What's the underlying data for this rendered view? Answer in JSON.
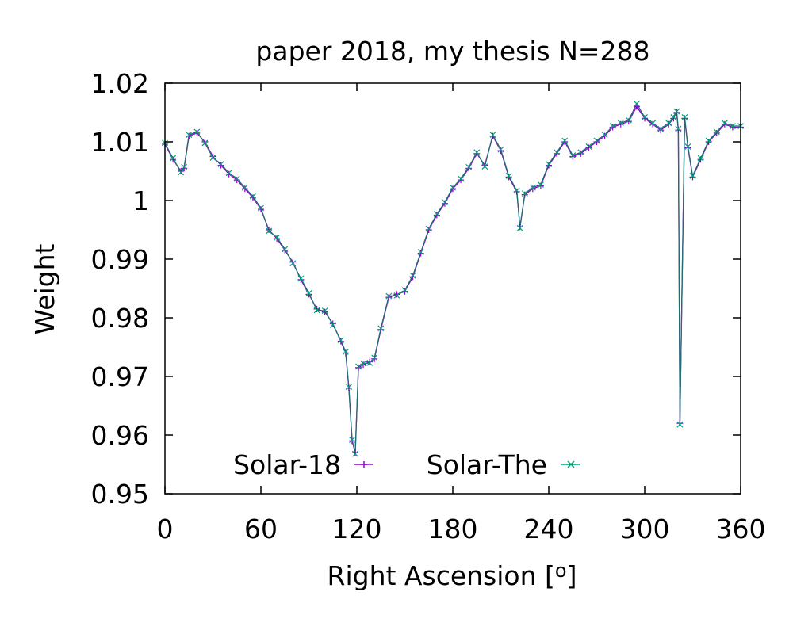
{
  "chart_data": {
    "type": "line",
    "title": "paper 2018, my thesis  N=288",
    "xlabel": "Right Ascension [",
    "xlabel_degree": "o",
    "xlabel_end": "]",
    "ylabel": "Weight",
    "xlim": [
      0,
      360
    ],
    "ylim": [
      0.95,
      1.02
    ],
    "xticks": [
      0,
      60,
      120,
      180,
      240,
      300,
      360
    ],
    "xtick_labels": [
      "0",
      "60",
      "120",
      "180",
      "240",
      "300",
      "360"
    ],
    "yticks": [
      0.95,
      0.96,
      0.97,
      0.98,
      0.99,
      1.0,
      1.01,
      1.02
    ],
    "ytick_labels": [
      "0.95",
      "0.96",
      "0.97",
      "0.98",
      "0.99",
      "1",
      "1.01",
      "1.02"
    ],
    "grid": false,
    "legend_position": "bottom-center",
    "series": [
      {
        "name": "Solar-18",
        "marker": "+",
        "color": "#9400d3",
        "x": [
          0,
          5,
          10,
          12,
          15,
          20,
          25,
          30,
          35,
          40,
          45,
          50,
          55,
          60,
          65,
          70,
          75,
          80,
          85,
          90,
          95,
          100,
          105,
          110,
          113,
          115,
          117,
          119,
          121,
          124,
          128,
          131,
          135,
          140,
          145,
          150,
          155,
          160,
          165,
          170,
          175,
          180,
          185,
          190,
          195,
          200,
          205,
          210,
          215,
          220,
          222,
          225,
          230,
          235,
          240,
          245,
          250,
          255,
          260,
          265,
          270,
          275,
          280,
          285,
          290,
          295,
          300,
          305,
          310,
          315,
          318,
          320,
          321,
          322,
          325,
          327,
          330,
          335,
          340,
          345,
          350,
          355,
          360
        ],
        "y": [
          1.0096,
          1.007,
          1.005,
          1.0055,
          1.011,
          1.0115,
          1.01,
          1.0075,
          1.006,
          1.0045,
          1.0035,
          1.002,
          1.0005,
          0.9985,
          0.995,
          0.9935,
          0.9915,
          0.9895,
          0.9865,
          0.984,
          0.9815,
          0.981,
          0.979,
          0.976,
          0.974,
          0.968,
          0.959,
          0.957,
          0.9715,
          0.972,
          0.9725,
          0.973,
          0.978,
          0.9835,
          0.984,
          0.9845,
          0.987,
          0.991,
          0.995,
          0.9975,
          0.9995,
          1.002,
          1.0035,
          1.0055,
          1.008,
          1.006,
          1.011,
          1.0085,
          1.004,
          1.0015,
          0.9955,
          1.001,
          1.002,
          1.0025,
          1.006,
          1.008,
          1.01,
          1.0075,
          1.008,
          1.009,
          1.01,
          1.011,
          1.0125,
          1.013,
          1.0135,
          1.016,
          1.014,
          1.013,
          1.012,
          1.013,
          1.014,
          1.015,
          1.012,
          0.962,
          1.014,
          1.009,
          1.004,
          1.007,
          1.01,
          1.0115,
          1.013,
          1.0125,
          1.0125
        ]
      },
      {
        "name": "Solar-The",
        "marker": "x",
        "color": "#009e73",
        "x": [
          0,
          5,
          10,
          12,
          15,
          20,
          25,
          30,
          35,
          40,
          45,
          50,
          55,
          60,
          65,
          70,
          75,
          80,
          85,
          90,
          95,
          100,
          105,
          110,
          113,
          115,
          117,
          119,
          121,
          124,
          128,
          131,
          135,
          140,
          145,
          150,
          155,
          160,
          165,
          170,
          175,
          180,
          185,
          190,
          195,
          200,
          205,
          210,
          215,
          220,
          222,
          225,
          230,
          235,
          240,
          245,
          250,
          255,
          260,
          265,
          270,
          275,
          280,
          285,
          290,
          295,
          300,
          305,
          310,
          315,
          318,
          320,
          321,
          322,
          325,
          327,
          330,
          335,
          340,
          345,
          350,
          355,
          360
        ],
        "y": [
          1.0098,
          1.0072,
          1.0048,
          1.0057,
          1.0112,
          1.0117,
          1.0098,
          1.0073,
          1.0062,
          1.0047,
          1.0037,
          1.0022,
          1.0007,
          0.9987,
          0.9948,
          0.9937,
          0.9917,
          0.9893,
          0.9867,
          0.9842,
          0.9813,
          0.9812,
          0.9788,
          0.9762,
          0.9742,
          0.9682,
          0.9592,
          0.9568,
          0.9717,
          0.9722,
          0.9723,
          0.9732,
          0.9782,
          0.9837,
          0.9838,
          0.9847,
          0.9872,
          0.9912,
          0.9952,
          0.9977,
          0.9997,
          1.0022,
          1.0037,
          1.0057,
          1.0082,
          1.0058,
          1.0112,
          1.0087,
          1.0042,
          1.0017,
          0.9953,
          1.0012,
          1.0022,
          1.0027,
          1.0062,
          1.0082,
          1.0102,
          1.0077,
          1.0082,
          1.0092,
          1.0102,
          1.0112,
          1.0127,
          1.0132,
          1.0137,
          1.0165,
          1.0142,
          1.0132,
          1.0122,
          1.0132,
          1.0142,
          1.0152,
          1.0122,
          0.9618,
          1.0142,
          1.0092,
          1.0042,
          1.0072,
          1.0102,
          1.0117,
          1.0132,
          1.0127,
          1.0127
        ]
      }
    ]
  }
}
